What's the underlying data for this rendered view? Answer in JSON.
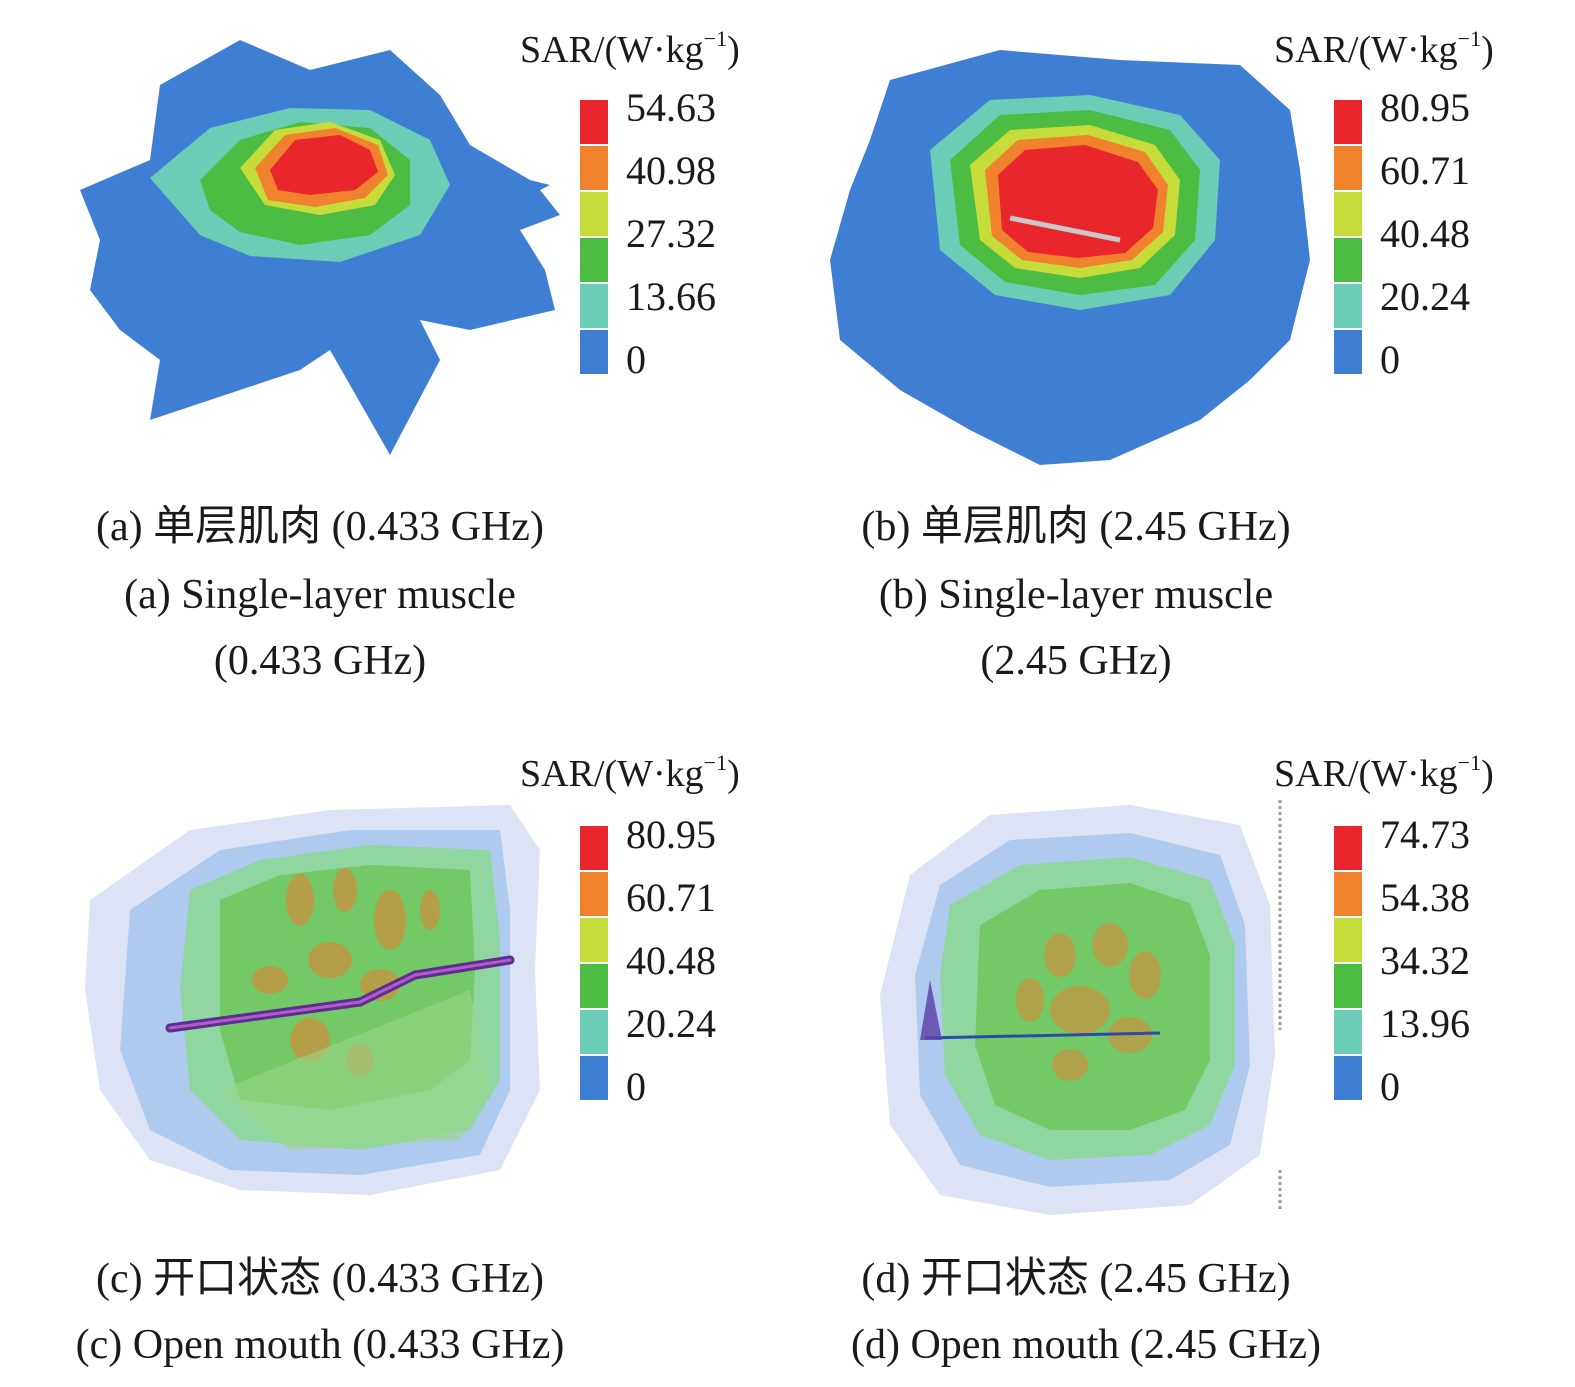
{
  "colors": {
    "red": "#e8262b",
    "orange": "#f0812d",
    "yellow": "#c6dc3a",
    "green": "#4cbc42",
    "teal": "#6ccdb6",
    "blue": "#3f7fd3",
    "navy": "#2b3fa3"
  },
  "panels": [
    {
      "id": "a",
      "unit": {
        "base": "SAR/(W·kg",
        "sup": "−1",
        "close": ")"
      },
      "ticks": [
        "54.63",
        "40.98",
        "27.32",
        "13.66",
        "0"
      ],
      "caption_cn": "(a) 单层肌肉 (0.433 GHz)",
      "caption_en_1": "(a) Single-layer muscle",
      "caption_en_2": "(0.433 GHz)"
    },
    {
      "id": "b",
      "unit": {
        "base": "SAR/(W·kg",
        "sup": "−1",
        "close": ")"
      },
      "ticks": [
        "80.95",
        "60.71",
        "40.48",
        "20.24",
        "0"
      ],
      "caption_cn": "(b) 单层肌肉 (2.45 GHz)",
      "caption_en_1": "(b) Single-layer muscle",
      "caption_en_2": "(2.45 GHz)"
    },
    {
      "id": "c",
      "unit": {
        "base": "SAR/(W·kg",
        "sup": "−1",
        "close": ")"
      },
      "ticks": [
        "80.95",
        "60.71",
        "40.48",
        "20.24",
        "0"
      ],
      "caption_cn": "(c) 开口状态 (0.433 GHz)",
      "caption_en_1": "(c) Open mouth (0.433 GHz)"
    },
    {
      "id": "d",
      "unit": {
        "base": "SAR/(W·kg",
        "sup": "−1",
        "close": ")"
      },
      "ticks": [
        "74.73",
        "54.38",
        "34.32",
        "13.96",
        "0"
      ],
      "caption_cn": "(d) 开口状态 (2.45 GHz)",
      "caption_en_1": "(d) Open mouth (2.45 GHz)"
    }
  ]
}
